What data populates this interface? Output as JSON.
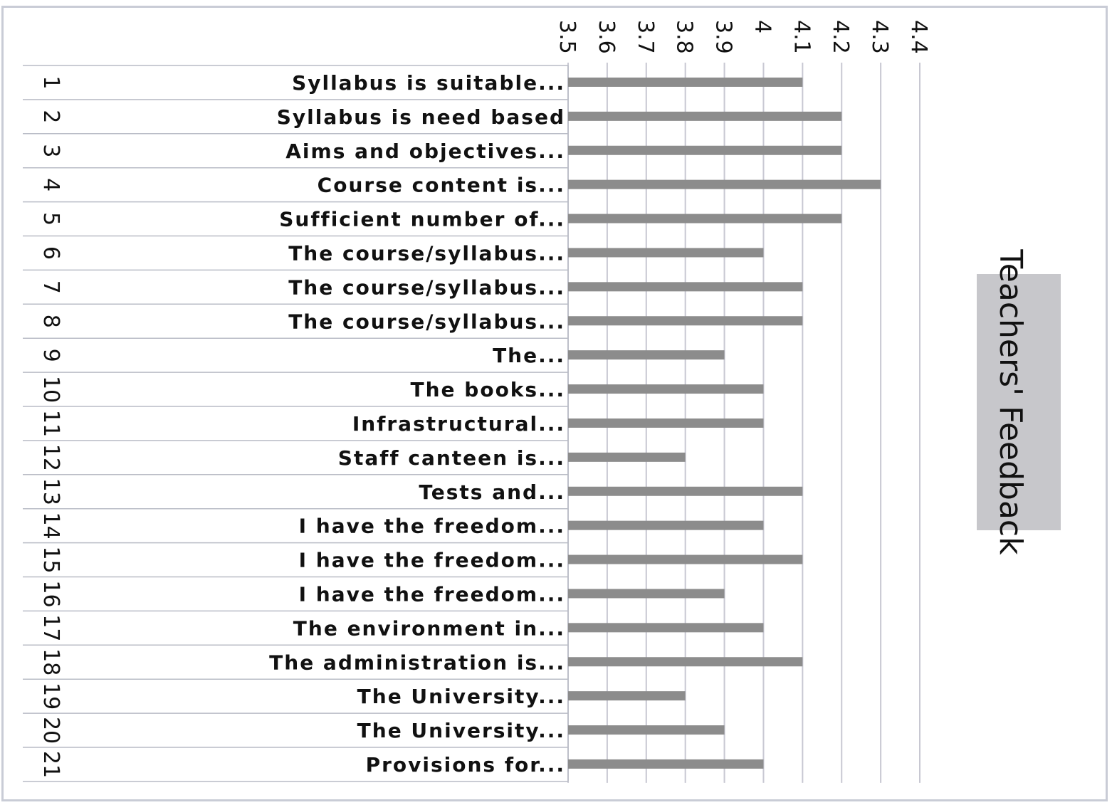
{
  "chart_data": {
    "type": "bar",
    "orientation": "horizontal",
    "title": "Teachers' Feedback",
    "row_numbers": [
      "1",
      "2",
      "3",
      "4",
      "5",
      "6",
      "7",
      "8",
      "9",
      "10",
      "11",
      "12",
      "13",
      "14",
      "15",
      "16",
      "17",
      "18",
      "19",
      "20",
      "21"
    ],
    "categories": [
      "Syllabus is suitable...",
      "Syllabus is need based",
      "Aims and objectives...",
      "Course content is...",
      "Sufficient number of...",
      "The course/syllabus...",
      "The course/syllabus...",
      "The course/syllabus...",
      "The...",
      "The books...",
      "Infrastructural...",
      "Staff canteen is...",
      "Tests and...",
      "I have the freedom...",
      "I have the freedom...",
      "I have the freedom...",
      "The environment in...",
      "The administration is...",
      "The University...",
      "The University...",
      "Provisions for..."
    ],
    "values": [
      4.1,
      4.2,
      4.2,
      4.3,
      4.2,
      4.0,
      4.1,
      4.1,
      3.9,
      4.0,
      4.0,
      3.8,
      4.1,
      4.0,
      4.1,
      3.9,
      4.0,
      4.1,
      3.8,
      3.9,
      4.0
    ],
    "ticks": [
      "3.5",
      "3.6",
      "3.7",
      "3.8",
      "3.9",
      "4",
      "4.1",
      "4.2",
      "4.3",
      "4.4"
    ],
    "xlim": [
      3.5,
      4.4
    ],
    "grid": true,
    "bar_color": "#8c8c8c",
    "grid_color": "#c8c8d2"
  }
}
